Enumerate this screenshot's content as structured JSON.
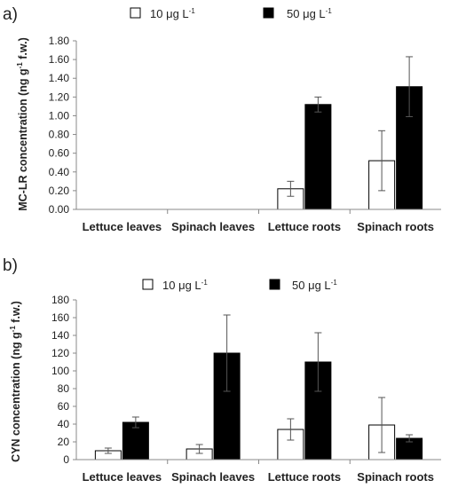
{
  "legend": {
    "unit_prefix": "μg L",
    "unit_exp": "-1"
  },
  "chart_data": [
    {
      "type": "bar",
      "panel_label": "a)",
      "title": "",
      "ylabel_main": "MC-LR concentration (ng g",
      "ylabel_exp": "-1",
      "ylabel_tail": " f.w.)",
      "xlabel": "",
      "categories": [
        "Lettuce leaves",
        "Spinach leaves",
        "Lettuce roots",
        "Spinach roots"
      ],
      "ylim": [
        0,
        1.8
      ],
      "yticks": [
        0,
        0.2,
        0.4,
        0.6,
        0.8,
        1.0,
        1.2,
        1.4,
        1.6,
        1.8
      ],
      "ytick_decimals": 2,
      "grid": false,
      "legend_position": "top-center",
      "series": [
        {
          "name": "10",
          "fill": "#ffffff",
          "values": [
            0,
            0,
            0.22,
            0.52
          ],
          "errors": [
            0,
            0,
            0.08,
            0.32
          ]
        },
        {
          "name": "50",
          "fill": "#000000",
          "values": [
            0,
            0,
            1.12,
            1.31
          ],
          "errors": [
            0,
            0,
            0.08,
            0.32
          ]
        }
      ]
    },
    {
      "type": "bar",
      "panel_label": "b)",
      "title": "",
      "ylabel_main": "CYN concentration (ng g",
      "ylabel_exp": "-1",
      "ylabel_tail": " f.w.)",
      "xlabel": "",
      "categories": [
        "Lettuce leaves",
        "Spinach leaves",
        "Lettuce roots",
        "Spinach roots"
      ],
      "ylim": [
        0,
        180
      ],
      "yticks": [
        0,
        20,
        40,
        60,
        80,
        100,
        120,
        140,
        160,
        180
      ],
      "ytick_decimals": 0,
      "grid": false,
      "legend_position": "top-center",
      "series": [
        {
          "name": "10",
          "fill": "#ffffff",
          "values": [
            10,
            12,
            34,
            39
          ],
          "errors": [
            3,
            5,
            12,
            31
          ]
        },
        {
          "name": "50",
          "fill": "#000000",
          "values": [
            42,
            120,
            110,
            24
          ],
          "errors": [
            6,
            43,
            33,
            4
          ]
        }
      ]
    }
  ]
}
